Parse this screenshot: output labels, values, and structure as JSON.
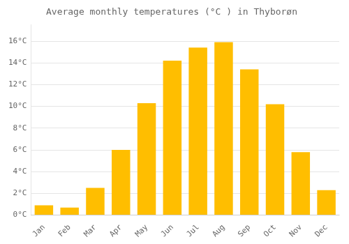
{
  "chart_data": {
    "type": "bar",
    "title": "Average monthly temperatures (°C ) in Thyborøn",
    "categories": [
      "Jan",
      "Feb",
      "Mar",
      "Apr",
      "May",
      "Jun",
      "Jul",
      "Aug",
      "Sep",
      "Oct",
      "Nov",
      "Dec"
    ],
    "values": [
      0.9,
      0.7,
      2.5,
      6.0,
      10.3,
      14.2,
      15.4,
      15.9,
      13.4,
      10.2,
      5.8,
      2.3
    ],
    "color": "#FFBE00",
    "ylim": [
      0,
      17.5
    ],
    "yticks": [
      {
        "value": 0,
        "label": "0°C"
      },
      {
        "value": 2,
        "label": "2°C"
      },
      {
        "value": 4,
        "label": "4°C"
      },
      {
        "value": 6,
        "label": "6°C"
      },
      {
        "value": 8,
        "label": "8°C"
      },
      {
        "value": 10,
        "label": "10°C"
      },
      {
        "value": 12,
        "label": "12°C"
      },
      {
        "value": 14,
        "label": "14°C"
      },
      {
        "value": 16,
        "label": "16°C"
      }
    ],
    "grid": true
  }
}
